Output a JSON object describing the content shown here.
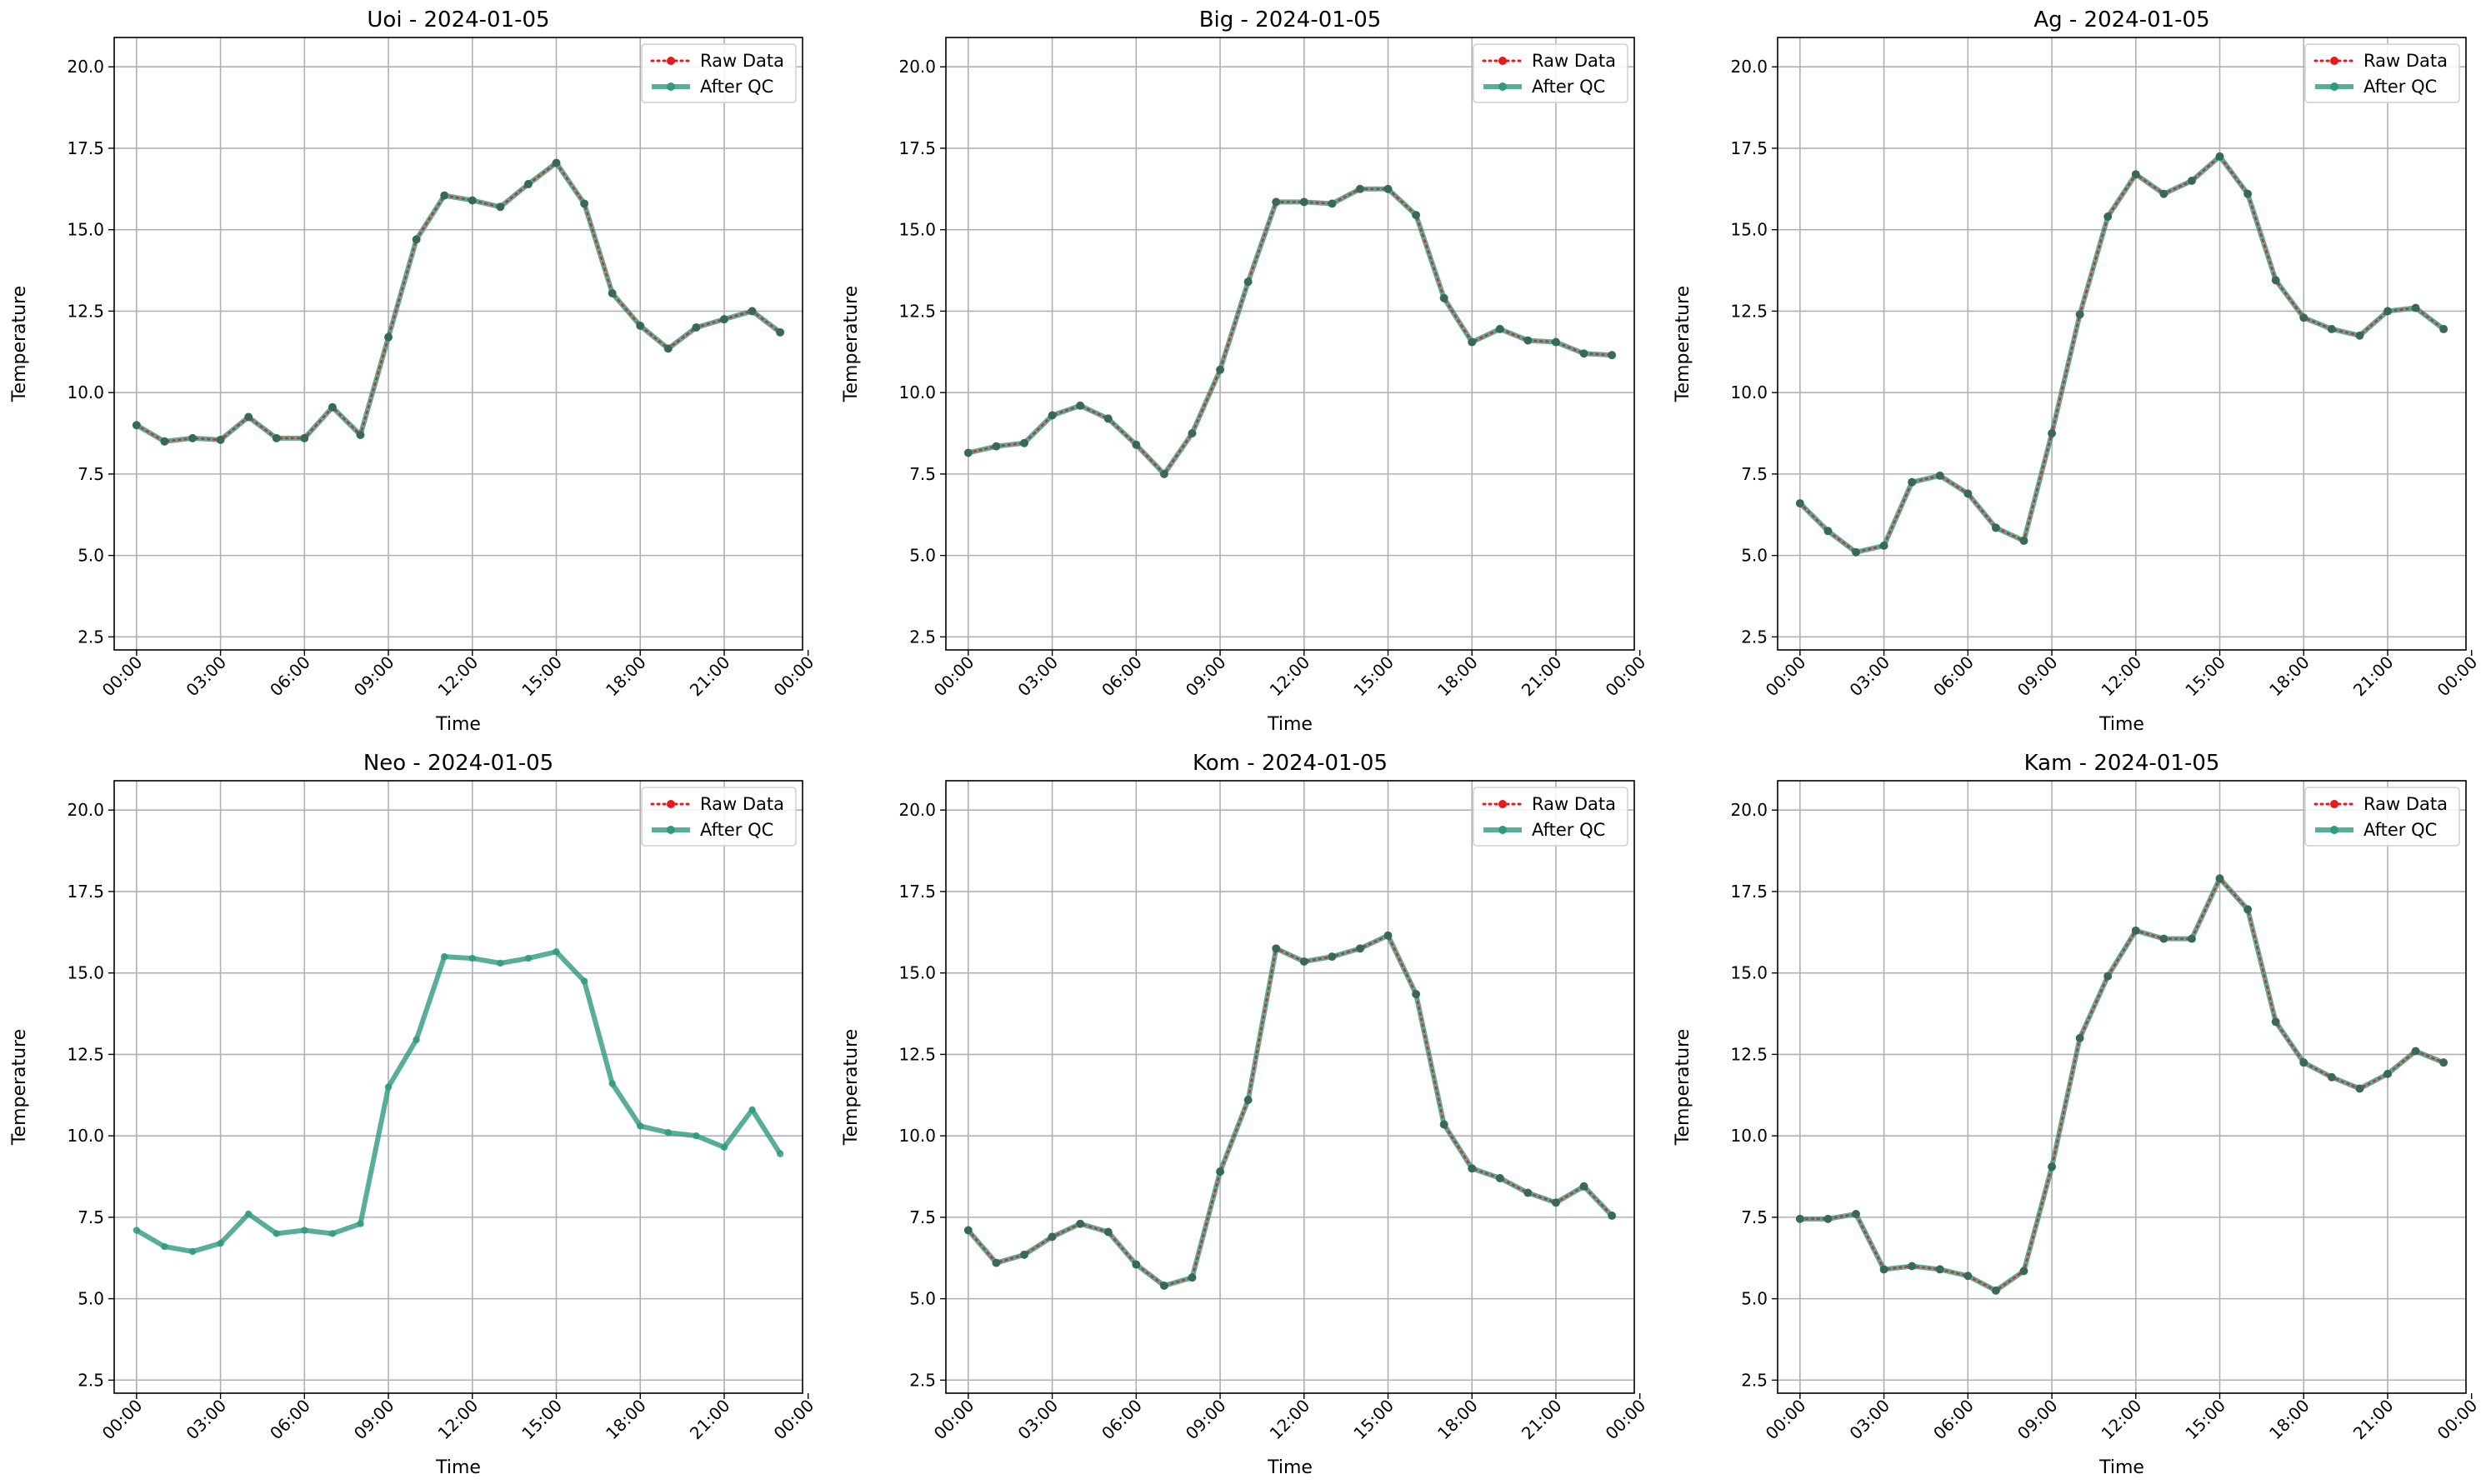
{
  "x_ticks": [
    "00:00",
    "03:00",
    "06:00",
    "09:00",
    "12:00",
    "15:00",
    "18:00",
    "21:00",
    "00:00"
  ],
  "y_ticks": [
    "2.5",
    "5.0",
    "7.5",
    "10.0",
    "12.5",
    "15.0",
    "17.5",
    "20.0"
  ],
  "legend": {
    "raw": "Raw Data",
    "qc": "After QC"
  },
  "colors": {
    "raw": "#e41a1c",
    "qc": "#2e9a7e",
    "grid": "#b0b0b0"
  },
  "chart_data": [
    {
      "type": "line",
      "title": "Uoi - 2024-01-05",
      "xlabel": "Time",
      "ylabel": "Temperature",
      "xlim_hours": [
        -0.8,
        23.8
      ],
      "ylim": [
        2.1,
        20.9
      ],
      "grid": true,
      "legend_position": "top-right",
      "x_hours": [
        0,
        1,
        2,
        3,
        4,
        5,
        6,
        7,
        8,
        9,
        10,
        11,
        12,
        13,
        14,
        15,
        16,
        17,
        18,
        19,
        20,
        21,
        22,
        23
      ],
      "series": [
        {
          "name": "Raw Data",
          "values": [
            9.0,
            8.5,
            8.6,
            8.55,
            9.25,
            8.6,
            8.6,
            9.55,
            8.7,
            11.7,
            14.7,
            16.05,
            15.9,
            15.7,
            16.4,
            17.05,
            15.8,
            13.05,
            12.05,
            11.35,
            12.0,
            12.25,
            12.5,
            11.85
          ]
        },
        {
          "name": "After QC",
          "values": [
            9.0,
            8.5,
            8.6,
            8.55,
            9.25,
            8.6,
            8.6,
            9.55,
            8.7,
            11.7,
            14.7,
            16.05,
            15.9,
            15.7,
            16.4,
            17.05,
            15.8,
            13.05,
            12.05,
            11.35,
            12.0,
            12.25,
            12.5,
            11.85
          ]
        }
      ]
    },
    {
      "type": "line",
      "title": "Big - 2024-01-05",
      "xlabel": "Time",
      "ylabel": "Temperature",
      "xlim_hours": [
        -0.8,
        23.8
      ],
      "ylim": [
        2.1,
        20.9
      ],
      "grid": true,
      "legend_position": "top-right",
      "x_hours": [
        0,
        1,
        2,
        3,
        4,
        5,
        6,
        7,
        8,
        9,
        10,
        11,
        12,
        13,
        14,
        15,
        16,
        17,
        18,
        19,
        20,
        21,
        22,
        23
      ],
      "series": [
        {
          "name": "Raw Data",
          "values": [
            8.15,
            8.35,
            8.45,
            9.3,
            9.6,
            9.2,
            8.4,
            7.5,
            8.75,
            10.7,
            13.4,
            15.85,
            15.85,
            15.8,
            16.25,
            16.25,
            15.45,
            12.9,
            11.55,
            11.95,
            11.6,
            11.55,
            11.2,
            11.15
          ]
        },
        {
          "name": "After QC",
          "values": [
            8.15,
            8.35,
            8.45,
            9.3,
            9.6,
            9.2,
            8.4,
            7.5,
            8.75,
            10.7,
            13.4,
            15.85,
            15.85,
            15.8,
            16.25,
            16.25,
            15.45,
            12.9,
            11.55,
            11.95,
            11.6,
            11.55,
            11.2,
            11.15
          ]
        }
      ]
    },
    {
      "type": "line",
      "title": "Ag - 2024-01-05",
      "xlabel": "Time",
      "ylabel": "Temperature",
      "xlim_hours": [
        -0.8,
        23.8
      ],
      "ylim": [
        2.1,
        20.9
      ],
      "grid": true,
      "legend_position": "top-right",
      "x_hours": [
        0,
        1,
        2,
        3,
        4,
        5,
        6,
        7,
        8,
        9,
        10,
        11,
        12,
        13,
        14,
        15,
        16,
        17,
        18,
        19,
        20,
        21,
        22,
        23
      ],
      "series": [
        {
          "name": "Raw Data",
          "values": [
            6.6,
            5.75,
            5.1,
            5.3,
            7.25,
            7.45,
            6.9,
            5.85,
            5.45,
            8.75,
            12.4,
            15.4,
            16.7,
            16.1,
            16.5,
            17.25,
            16.1,
            13.45,
            12.3,
            11.95,
            11.75,
            12.5,
            12.6,
            11.95
          ]
        },
        {
          "name": "After QC",
          "values": [
            6.6,
            5.75,
            5.1,
            5.3,
            7.25,
            7.45,
            6.9,
            5.85,
            5.45,
            8.75,
            12.4,
            15.4,
            16.7,
            16.1,
            16.5,
            17.25,
            16.1,
            13.45,
            12.3,
            11.95,
            11.75,
            12.5,
            12.6,
            11.95
          ]
        }
      ]
    },
    {
      "type": "line",
      "title": "Neo - 2024-01-05",
      "xlabel": "Time",
      "ylabel": "Temperature",
      "xlim_hours": [
        -0.8,
        23.8
      ],
      "ylim": [
        2.1,
        20.9
      ],
      "grid": true,
      "legend_position": "top-right",
      "x_hours": [
        0,
        1,
        2,
        3,
        4,
        5,
        6,
        7,
        8,
        9,
        10,
        11,
        12,
        13,
        14,
        15,
        16,
        17,
        18,
        19,
        20,
        21,
        22,
        23
      ],
      "series": [
        {
          "name": "Raw Data",
          "values": [
            7.1,
            6.6,
            6.45,
            6.7,
            7.6,
            7.0,
            7.1,
            7.0,
            7.3,
            11.5,
            12.95,
            15.5,
            15.45,
            15.3,
            15.45,
            15.65,
            14.75,
            11.6,
            10.3,
            10.1,
            10.0,
            9.65,
            10.8,
            9.45
          ]
        },
        {
          "name": "After QC",
          "values": [
            7.1,
            6.6,
            6.45,
            6.7,
            7.6,
            7.0,
            7.1,
            7.0,
            7.3,
            11.5,
            12.95,
            15.5,
            15.45,
            15.3,
            15.45,
            15.65,
            14.75,
            11.6,
            10.3,
            10.1,
            10.0,
            9.65,
            10.8,
            9.45
          ]
        }
      ]
    },
    {
      "type": "line",
      "title": "Kom - 2024-01-05",
      "xlabel": "Time",
      "ylabel": "Temperature",
      "xlim_hours": [
        -0.8,
        23.8
      ],
      "ylim": [
        2.1,
        20.9
      ],
      "grid": true,
      "legend_position": "top-right",
      "x_hours": [
        0,
        1,
        2,
        3,
        4,
        5,
        6,
        7,
        8,
        9,
        10,
        11,
        12,
        13,
        14,
        15,
        16,
        17,
        18,
        19,
        20,
        21,
        22,
        23
      ],
      "series": [
        {
          "name": "Raw Data",
          "values": [
            7.1,
            6.1,
            6.35,
            6.9,
            7.3,
            7.05,
            6.05,
            5.4,
            5.65,
            8.9,
            11.1,
            15.75,
            15.35,
            15.5,
            15.75,
            16.15,
            14.35,
            10.35,
            9.0,
            8.7,
            8.25,
            7.95,
            8.45,
            7.55
          ]
        },
        {
          "name": "After QC",
          "values": [
            7.1,
            6.1,
            6.35,
            6.9,
            7.3,
            7.05,
            6.05,
            5.4,
            5.65,
            8.9,
            11.1,
            15.75,
            15.35,
            15.5,
            15.75,
            16.15,
            14.35,
            10.35,
            9.0,
            8.7,
            8.25,
            7.95,
            8.45,
            7.55
          ]
        }
      ]
    },
    {
      "type": "line",
      "title": "Kam - 2024-01-05",
      "xlabel": "Time",
      "ylabel": "Temperature",
      "xlim_hours": [
        -0.8,
        23.8
      ],
      "ylim": [
        2.1,
        20.9
      ],
      "grid": true,
      "legend_position": "top-right",
      "x_hours": [
        0,
        1,
        2,
        3,
        4,
        5,
        6,
        7,
        8,
        9,
        10,
        11,
        12,
        13,
        14,
        15,
        16,
        17,
        18,
        19,
        20,
        21,
        22,
        23
      ],
      "series": [
        {
          "name": "Raw Data",
          "values": [
            7.45,
            7.45,
            7.6,
            5.9,
            6.0,
            5.9,
            5.7,
            5.25,
            5.85,
            9.05,
            13.0,
            14.9,
            16.3,
            16.05,
            16.05,
            17.9,
            16.95,
            13.5,
            12.25,
            11.8,
            11.45,
            11.9,
            12.6,
            12.25
          ]
        },
        {
          "name": "After QC",
          "values": [
            7.45,
            7.45,
            7.6,
            5.9,
            6.0,
            5.9,
            5.7,
            5.25,
            5.85,
            9.05,
            13.0,
            14.9,
            16.3,
            16.05,
            16.05,
            17.9,
            16.95,
            13.5,
            12.25,
            11.8,
            11.45,
            11.9,
            12.6,
            12.25
          ]
        }
      ]
    }
  ]
}
